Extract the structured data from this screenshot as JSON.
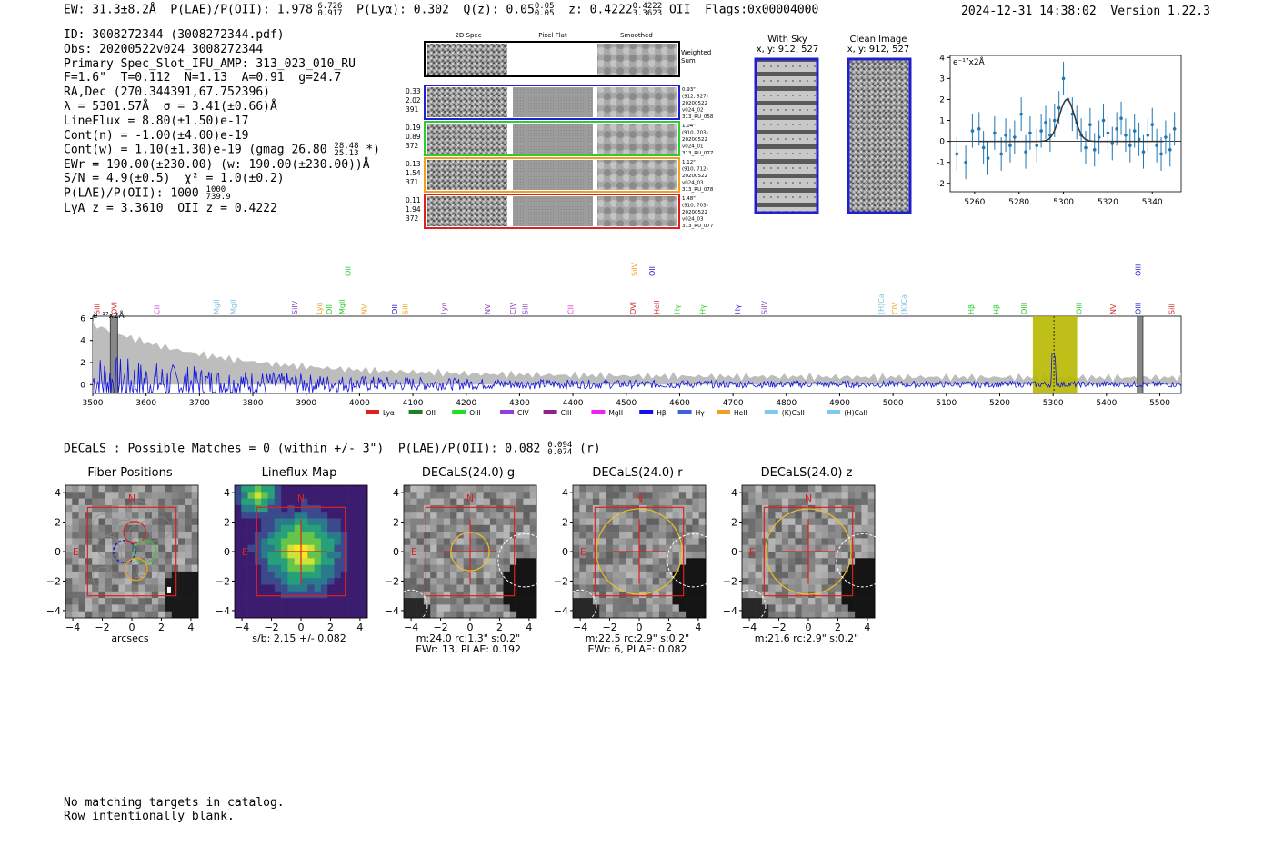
{
  "header": {
    "ew": "EW: 31.3±8.2Å",
    "plae_label": "P(LAE)/P(OII): 1.978",
    "plae_hi": "6.726",
    "plae_lo": "0.917",
    "plya": "P(Lyα): 0.302",
    "qz_label": "Q(z): 0.05",
    "qz_hi": "0.05",
    "qz_lo": "0.05",
    "z_label": "z: 0.4222",
    "z_hi": "0.4222",
    "z_lo": "3.3623",
    "z_line": "OII",
    "flags": "Flags:0x00004000",
    "timestamp": "2024-12-31 14:38:02",
    "version": "Version 1.22.3"
  },
  "info": {
    "id": "ID: 3008272344 (3008272344.pdf)",
    "obs": "Obs: 20200522v024_3008272344",
    "primary": "Primary Spec_Slot_IFU_AMP: 313_023_010_RU",
    "params": "F=1.6\"  T=0.112  N=1.13  A=0.91  g=24.7",
    "radec": "RA,Dec (270.344391,67.752396)",
    "lambda": "λ = 5301.57Å  σ = 3.41(±0.66)Å",
    "lineflux": "LineFlux = 8.80(±1.50)e-17",
    "contn": "Cont(n) = -1.00(±4.00)e-19",
    "contw": "Cont(w) = 1.10(±1.30)e-19 (gmag 26.80",
    "contw_hi": "28.48",
    "contw_lo": "25.13",
    "contw_tail": "*)",
    "ewr": "EWr = 190.00(±230.00) (w: 190.00(±230.00))Å",
    "sn": "S/N = 4.9(±0.5)  χ² = 1.0(±0.2)",
    "plae": "P(LAE)/P(OII): 1000",
    "plae_hi": "1000",
    "plae_lo": "739.9",
    "lyaz": "LyA z = 3.3610  OII z = 0.4222"
  },
  "cutouts": {
    "col_labels": [
      "2D Spec",
      "Pixel Flat",
      "Smoothed"
    ],
    "weighted_sum": "Weighted Sum",
    "rows": [
      {
        "left": [
          "0.33",
          "2.02",
          "391"
        ],
        "right": [
          "0.93\"",
          "(912, 527)",
          "20200522",
          "v024_02",
          "313_RU_058"
        ],
        "color": "#1f1fd0"
      },
      {
        "left": [
          "0.19",
          "0.89",
          "372"
        ],
        "right": [
          "1.04\"",
          "(910, 703)",
          "20200522",
          "v024_01",
          "313_RU_077"
        ],
        "color": "#2ecc2e"
      },
      {
        "left": [
          "0.13",
          "1.54",
          "371"
        ],
        "right": [
          "1.12\"",
          "(910, 712)",
          "20200522",
          "v024_03",
          "313_RU_078"
        ],
        "color": "#f0a020"
      },
      {
        "left": [
          "0.11",
          "1.94",
          "372"
        ],
        "right": [
          "1.48\"",
          "(910, 703)",
          "20200522",
          "v024_03",
          "313_RU_077"
        ],
        "color": "#e02020"
      }
    ],
    "with_sky_title": "With Sky",
    "with_sky_coords": "x, y: 912, 527",
    "clean_title": "Clean Image",
    "clean_coords": "x, y: 912, 527"
  },
  "zoom_chart": {
    "type": "scatter",
    "unit_label": "e⁻¹⁷x2Å",
    "x_ticks": [
      "5260",
      "5280",
      "5300",
      "5320",
      "5340"
    ],
    "y_ticks": [
      "-2",
      "-1",
      "0",
      "1",
      "2",
      "3",
      "4"
    ],
    "xlim": [
      5249,
      5353
    ],
    "ylim": [
      -2.4,
      4.1
    ],
    "x": [
      5252,
      5256,
      5259,
      5262,
      5264,
      5266,
      5269,
      5272,
      5274,
      5276,
      5278,
      5281,
      5283,
      5285,
      5288,
      5290,
      5292,
      5294,
      5296,
      5298,
      5300,
      5302,
      5304,
      5306,
      5308,
      5310,
      5312,
      5314,
      5316,
      5318,
      5320,
      5322,
      5324,
      5326,
      5328,
      5330,
      5332,
      5334,
      5336,
      5338,
      5340,
      5342,
      5344,
      5346,
      5348,
      5350
    ],
    "y": [
      -0.6,
      -1.0,
      0.5,
      0.6,
      -0.3,
      -0.8,
      0.4,
      -0.6,
      0.3,
      -0.2,
      0.2,
      1.3,
      -0.5,
      0.4,
      -0.2,
      0.5,
      0.9,
      0.3,
      1.0,
      1.6,
      3.0,
      2.0,
      1.3,
      0.9,
      0.3,
      -0.3,
      0.8,
      -0.4,
      0.2,
      1.0,
      0.4,
      -0.1,
      0.6,
      1.1,
      0.3,
      -0.2,
      0.5,
      0.1,
      -0.5,
      0.3,
      0.8,
      -0.2,
      -0.6,
      0.2,
      -0.4,
      0.6
    ],
    "err": 0.8,
    "fit_center": 5301.57,
    "fit_sigma": 3.41,
    "fit_amp": 2.0
  },
  "spectrum": {
    "type": "line",
    "unit_label": "e⁻¹⁷x2Å",
    "xlim": [
      3500,
      5540
    ],
    "ylim": [
      -0.8,
      6.2
    ],
    "x_ticks": [
      "3500",
      "3600",
      "3700",
      "3800",
      "3900",
      "4000",
      "4100",
      "4200",
      "4300",
      "4400",
      "4500",
      "4600",
      "4700",
      "4800",
      "4900",
      "5000",
      "5100",
      "5200",
      "5300",
      "5400",
      "5500"
    ],
    "y_ticks": [
      "0",
      "2",
      "4",
      "6"
    ],
    "highlight_range": [
      5262,
      5345
    ],
    "line_marker": 5301.57,
    "line_labels": [
      {
        "label": "SiII",
        "x": 3508,
        "color": "#d03030"
      },
      {
        "label": "OVI",
        "x": 3540,
        "color": "#d03030"
      },
      {
        "label": "CIII",
        "x": 3620,
        "color": "#e040e0"
      },
      {
        "label": "MgII",
        "x": 3732,
        "color": "#80c0e0"
      },
      {
        "label": "MgII",
        "x": 3763,
        "color": "#80c0e0"
      },
      {
        "label": "SiIV",
        "x": 3878,
        "color": "#9040c0"
      },
      {
        "label": "Lyα",
        "x": 3924,
        "color": "#f0a020"
      },
      {
        "label": "OII",
        "x": 3943,
        "color": "#2ecc2e"
      },
      {
        "label": "MgII",
        "x": 3967,
        "color": "#2ecc2e"
      },
      {
        "label": "NV",
        "x": 4009,
        "color": "#f0a020"
      },
      {
        "label": "OII",
        "x": 4066,
        "color": "#1f1fd0"
      },
      {
        "label": "SiII",
        "x": 4085,
        "color": "#f0a020"
      },
      {
        "label": "Lyα",
        "x": 4158,
        "color": "#9040c0"
      },
      {
        "label": "NV",
        "x": 4240,
        "color": "#9040c0"
      },
      {
        "label": "CIV",
        "x": 4287,
        "color": "#9040c0"
      },
      {
        "label": "SiII",
        "x": 4310,
        "color": "#9040c0"
      },
      {
        "label": "CII",
        "x": 4396,
        "color": "#e040e0"
      },
      {
        "label": "OVI",
        "x": 4512,
        "color": "#d03030"
      },
      {
        "label": "HeII",
        "x": 4557,
        "color": "#d03030"
      },
      {
        "label": "Hγ",
        "x": 4595,
        "color": "#2ecc2e"
      },
      {
        "label": "Hγ",
        "x": 4643,
        "color": "#2ecc2e"
      },
      {
        "label": "Hγ",
        "x": 4708,
        "color": "#1f1fd0"
      },
      {
        "label": "SiIV",
        "x": 4759,
        "color": "#9040c0"
      },
      {
        "label": "(H)Ca",
        "x": 4978,
        "color": "#80c0e0"
      },
      {
        "label": "CIV",
        "x": 5003,
        "color": "#f0a020"
      },
      {
        "label": "(K)Ca",
        "x": 5020,
        "color": "#80c0e0"
      },
      {
        "label": "Hβ",
        "x": 5146,
        "color": "#2ecc2e"
      },
      {
        "label": "Hβ",
        "x": 5193,
        "color": "#2ecc2e"
      },
      {
        "label": "OIII",
        "x": 5245,
        "color": "#2ecc2e"
      },
      {
        "label": "OIII",
        "x": 5348,
        "color": "#2ecc2e"
      },
      {
        "label": "NV",
        "x": 5412,
        "color": "#d03030"
      },
      {
        "label": "OIII",
        "x": 5459,
        "color": "#1f1fd0"
      },
      {
        "label": "SiII",
        "x": 5522,
        "color": "#d03030"
      }
    ],
    "upper_labels": [
      {
        "label": "OII",
        "x": 3978,
        "color": "#2ecc2e"
      },
      {
        "label": "SiIV",
        "x": 4515,
        "color": "#f0a020"
      },
      {
        "label": "OII",
        "x": 4548,
        "color": "#1f1fd0"
      },
      {
        "label": "OIII",
        "x": 5459,
        "color": "#1f1fd0"
      }
    ],
    "legend": [
      {
        "label": "Lyα",
        "color": "#e02020"
      },
      {
        "label": "OII",
        "color": "#208020"
      },
      {
        "label": "OIII",
        "color": "#20e020"
      },
      {
        "label": "CIV",
        "color": "#9040e0"
      },
      {
        "label": "CIII",
        "color": "#902090"
      },
      {
        "label": "MgII",
        "color": "#f020f0"
      },
      {
        "label": "Hβ",
        "color": "#1010f0"
      },
      {
        "label": "Hγ",
        "color": "#4060e0"
      },
      {
        "label": "HeII",
        "color": "#f0a020"
      },
      {
        "label": "(K)CaII",
        "color": "#80c8f0"
      },
      {
        "label": "(H)CaII",
        "color": "#80c8f0"
      }
    ]
  },
  "decals": {
    "header": "DECaLS : Possible Matches = 0 (within +/- 3\")  P(LAE)/P(OII): 0.082",
    "plae_hi": "0.094",
    "plae_lo": "0.074",
    "band": "(r)",
    "panels": [
      {
        "title": "Fiber Positions",
        "cap1": "arcsecs",
        "cap2": ""
      },
      {
        "title": "Lineflux Map",
        "cap1": "s/b: 2.15 +/- 0.082",
        "cap2": ""
      },
      {
        "title": "DECaLS(24.0) g",
        "cap1": "m:24.0 rc:1.3\"  s:0.2\"",
        "cap2": "EWr: 13, PLAE: 0.192"
      },
      {
        "title": "DECaLS(24.0) r",
        "cap1": "m:22.5 rc:2.9\"  s:0.2\"",
        "cap2": "EWr: 6, PLAE: 0.082"
      },
      {
        "title": "DECaLS(24.0) z",
        "cap1": "m:21.6 rc:2.9\"  s:0.2\"",
        "cap2": ""
      }
    ],
    "axis_ticks": [
      "−4",
      "−2",
      "0",
      "2",
      "4"
    ],
    "axis_ticks_y": [
      "4",
      "2",
      "0",
      "−2",
      "−4"
    ],
    "north": "N",
    "east": "E"
  },
  "footer": {
    "line1": "No matching targets in catalog.",
    "line2": "Row intentionally blank."
  }
}
